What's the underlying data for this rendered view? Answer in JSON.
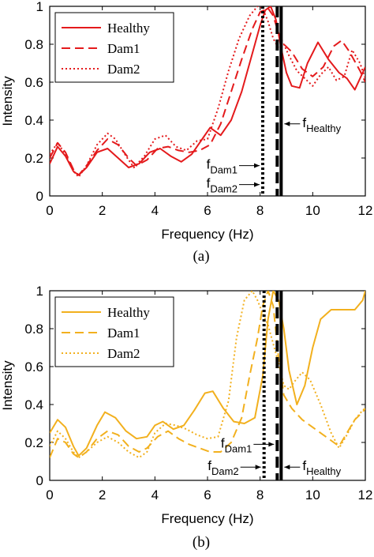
{
  "chart_data": [
    {
      "type": "line",
      "panel_label": "(a)",
      "xlabel": "Frequency (Hz)",
      "ylabel": "Intensity",
      "xlim": [
        0,
        12
      ],
      "ylim": [
        0,
        1
      ],
      "xticks": [
        "0",
        "2",
        "4",
        "6",
        "8",
        "10",
        "12"
      ],
      "yticks": [
        "0",
        "0.2",
        "0.4",
        "0.6",
        "0.8",
        "1"
      ],
      "grid": false,
      "legend_position": "top-left",
      "color": "#e41a1c",
      "series": [
        {
          "name": "Healthy",
          "style": "solid",
          "x": [
            0,
            0.3,
            0.6,
            0.9,
            1.1,
            1.4,
            1.8,
            2.2,
            2.6,
            3.0,
            3.4,
            3.8,
            4.2,
            4.6,
            5.0,
            5.4,
            5.8,
            6.1,
            6.5,
            6.9,
            7.3,
            7.7,
            8.0,
            8.2,
            8.4,
            8.6,
            8.8,
            9.0,
            9.2,
            9.5,
            9.8,
            10.2,
            10.6,
            11.0,
            11.3,
            11.6,
            12.0
          ],
          "y": [
            0.17,
            0.26,
            0.21,
            0.13,
            0.11,
            0.15,
            0.23,
            0.25,
            0.2,
            0.15,
            0.17,
            0.23,
            0.25,
            0.21,
            0.18,
            0.22,
            0.3,
            0.36,
            0.32,
            0.4,
            0.55,
            0.75,
            0.9,
            0.98,
            1.0,
            0.93,
            0.78,
            0.65,
            0.58,
            0.57,
            0.7,
            0.81,
            0.72,
            0.65,
            0.62,
            0.56,
            0.68
          ]
        },
        {
          "name": "Dam1",
          "style": "dashed",
          "x": [
            0,
            0.3,
            0.6,
            0.9,
            1.1,
            1.4,
            1.8,
            2.2,
            2.6,
            3.0,
            3.3,
            3.7,
            4.1,
            4.5,
            4.9,
            5.3,
            5.7,
            6.1,
            6.5,
            6.9,
            7.3,
            7.7,
            8.0,
            8.3,
            8.5,
            8.7,
            8.9,
            9.2,
            9.6,
            10.0,
            10.4,
            10.8,
            11.1,
            11.4,
            11.8,
            12.0
          ],
          "y": [
            0.2,
            0.28,
            0.23,
            0.14,
            0.11,
            0.16,
            0.24,
            0.3,
            0.27,
            0.2,
            0.16,
            0.19,
            0.25,
            0.26,
            0.24,
            0.23,
            0.24,
            0.27,
            0.38,
            0.55,
            0.72,
            0.88,
            0.97,
            0.99,
            0.95,
            0.86,
            0.8,
            0.76,
            0.67,
            0.63,
            0.68,
            0.79,
            0.82,
            0.76,
            0.66,
            0.6
          ]
        },
        {
          "name": "Dam2",
          "style": "dotted",
          "x": [
            0,
            0.3,
            0.6,
            0.9,
            1.1,
            1.4,
            1.8,
            2.2,
            2.5,
            2.9,
            3.2,
            3.6,
            4.0,
            4.4,
            4.8,
            5.2,
            5.6,
            6.0,
            6.4,
            6.8,
            7.2,
            7.6,
            7.9,
            8.1,
            8.3,
            8.5,
            8.7,
            8.9,
            9.1,
            9.4,
            9.7,
            10.0,
            10.3,
            10.6,
            10.9,
            11.2,
            11.5,
            11.8,
            12.0
          ],
          "y": [
            0.22,
            0.28,
            0.22,
            0.13,
            0.1,
            0.16,
            0.27,
            0.33,
            0.3,
            0.21,
            0.15,
            0.21,
            0.3,
            0.32,
            0.26,
            0.24,
            0.29,
            0.3,
            0.46,
            0.66,
            0.83,
            0.95,
            1.0,
            0.99,
            0.92,
            0.83,
            0.78,
            0.8,
            0.74,
            0.66,
            0.62,
            0.58,
            0.64,
            0.68,
            0.61,
            0.63,
            0.77,
            0.7,
            0.62
          ]
        }
      ],
      "vlines": [
        {
          "name": "Healthy",
          "x": 8.8,
          "style": "solid"
        },
        {
          "name": "Dam1",
          "x": 8.65,
          "style": "dashed"
        },
        {
          "name": "Dam2",
          "x": 8.1,
          "style": "dotted"
        }
      ],
      "annotations": [
        {
          "main": "f",
          "sub": "Healthy",
          "points_to": "Healthy",
          "y": 0.38
        },
        {
          "main": "f",
          "sub": "Dam1",
          "points_to": "Dam2",
          "y": 0.16
        },
        {
          "main": "f",
          "sub": "Dam2",
          "points_to": "Dam2",
          "y": 0.06
        }
      ]
    },
    {
      "type": "line",
      "panel_label": "(b)",
      "xlabel": "Frequency (Hz)",
      "ylabel": "Intensity",
      "xlim": [
        0,
        12
      ],
      "ylim": [
        0,
        1
      ],
      "xticks": [
        "0",
        "2",
        "4",
        "6",
        "8",
        "10",
        "12"
      ],
      "yticks": [
        "0",
        "0.2",
        "0.4",
        "0.6",
        "0.8",
        "1"
      ],
      "grid": false,
      "legend_position": "top-left",
      "color": "#f2b01e",
      "series": [
        {
          "name": "Healthy",
          "style": "solid",
          "x": [
            0,
            0.3,
            0.6,
            0.9,
            1.1,
            1.4,
            1.8,
            2.1,
            2.5,
            2.9,
            3.3,
            3.7,
            4.0,
            4.3,
            4.7,
            5.1,
            5.5,
            5.9,
            6.2,
            6.6,
            7.0,
            7.4,
            7.8,
            8.1,
            8.3,
            8.5,
            8.7,
            8.9,
            9.1,
            9.4,
            9.7,
            10.0,
            10.3,
            10.7,
            11.0,
            11.3,
            11.6,
            11.9,
            12.0
          ],
          "y": [
            0.25,
            0.32,
            0.28,
            0.18,
            0.13,
            0.17,
            0.29,
            0.36,
            0.33,
            0.26,
            0.22,
            0.23,
            0.29,
            0.31,
            0.27,
            0.29,
            0.37,
            0.46,
            0.47,
            0.38,
            0.31,
            0.3,
            0.33,
            0.55,
            0.85,
            1.0,
            0.95,
            0.8,
            0.58,
            0.4,
            0.5,
            0.7,
            0.85,
            0.9,
            0.9,
            0.9,
            0.9,
            0.95,
            1.0
          ]
        },
        {
          "name": "Dam1",
          "style": "dashed",
          "x": [
            0,
            0.3,
            0.6,
            0.9,
            1.1,
            1.4,
            1.8,
            2.2,
            2.6,
            3.0,
            3.4,
            3.7,
            4.1,
            4.5,
            4.9,
            5.3,
            5.7,
            6.1,
            6.5,
            6.9,
            7.3,
            7.6,
            7.9,
            8.1,
            8.3,
            8.5,
            8.7,
            8.9,
            9.2,
            9.6,
            10.0,
            10.4,
            10.8,
            11.0,
            11.3,
            11.6,
            11.9,
            12.0
          ],
          "y": [
            0.12,
            0.22,
            0.2,
            0.14,
            0.12,
            0.15,
            0.22,
            0.26,
            0.24,
            0.18,
            0.15,
            0.17,
            0.23,
            0.26,
            0.22,
            0.19,
            0.17,
            0.15,
            0.15,
            0.2,
            0.33,
            0.55,
            0.75,
            0.92,
            1.0,
            0.92,
            0.65,
            0.45,
            0.38,
            0.32,
            0.28,
            0.24,
            0.2,
            0.18,
            0.25,
            0.32,
            0.36,
            0.38
          ]
        },
        {
          "name": "Dam2",
          "style": "dotted",
          "x": [
            0,
            0.3,
            0.6,
            0.9,
            1.1,
            1.4,
            1.8,
            2.2,
            2.6,
            3.0,
            3.4,
            3.7,
            4.0,
            4.4,
            4.8,
            5.2,
            5.6,
            6.0,
            6.4,
            6.8,
            7.1,
            7.4,
            7.7,
            7.9,
            8.1,
            8.3,
            8.5,
            8.7,
            8.9,
            9.1,
            9.3,
            9.6,
            9.9,
            10.3,
            10.7,
            11.0,
            11.3,
            11.6,
            11.9,
            12.0
          ],
          "y": [
            0.18,
            0.26,
            0.22,
            0.15,
            0.12,
            0.15,
            0.2,
            0.23,
            0.2,
            0.15,
            0.12,
            0.15,
            0.25,
            0.3,
            0.29,
            0.27,
            0.24,
            0.22,
            0.23,
            0.42,
            0.75,
            0.95,
            1.0,
            0.95,
            0.88,
            0.82,
            0.72,
            0.62,
            0.5,
            0.48,
            0.52,
            0.57,
            0.53,
            0.4,
            0.25,
            0.17,
            0.24,
            0.32,
            0.37,
            0.38
          ]
        }
      ],
      "vlines": [
        {
          "name": "Healthy",
          "x": 8.8,
          "style": "solid"
        },
        {
          "name": "Dam1",
          "x": 8.65,
          "style": "dashed"
        },
        {
          "name": "Dam2",
          "x": 8.15,
          "style": "dotted"
        }
      ],
      "annotations": [
        {
          "main": "f",
          "sub": "Healthy",
          "points_to": "Healthy",
          "y": 0.07
        },
        {
          "main": "f",
          "sub": "Dam1",
          "points_to": "Dam1",
          "y": 0.19
        },
        {
          "main": "f",
          "sub": "Dam2",
          "points_to": "Dam2",
          "y": 0.07
        }
      ]
    }
  ]
}
